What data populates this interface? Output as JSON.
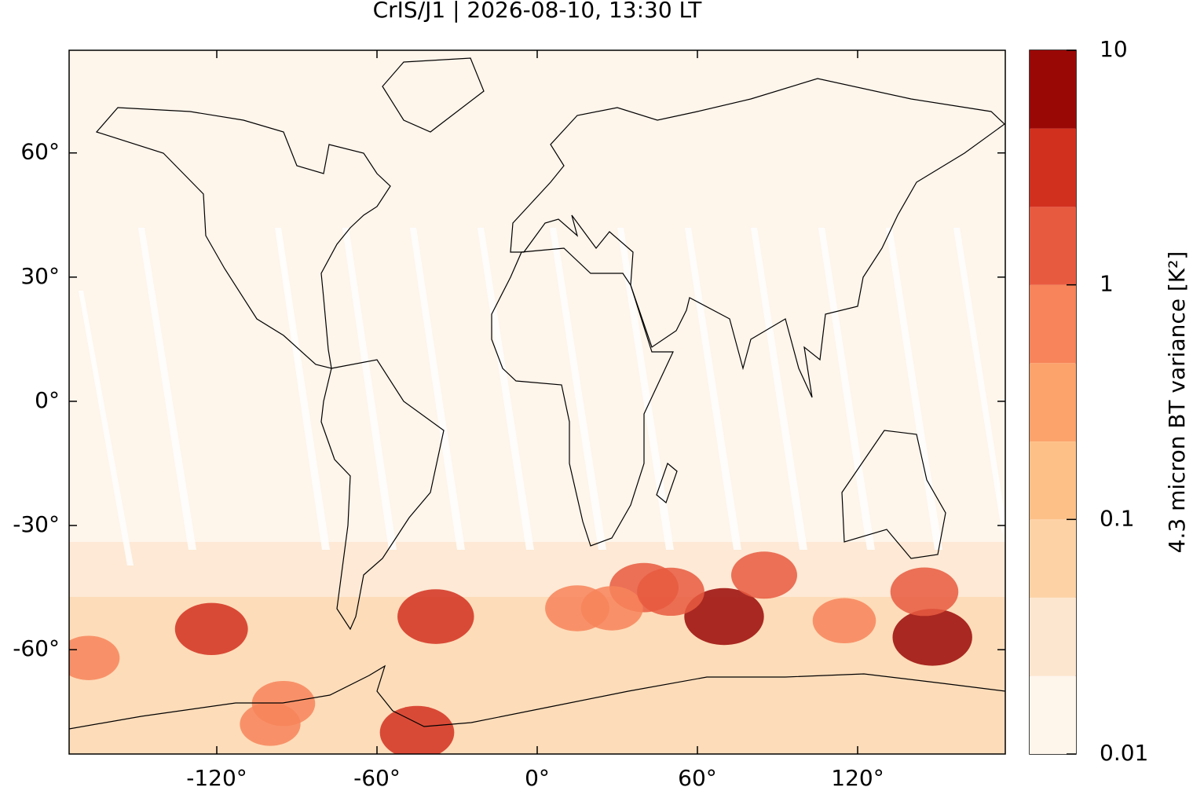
{
  "chart_data": {
    "type": "map",
    "title": "CrIS/J1 | 2026-08-10, 13:30 LT",
    "xlim": [
      -175.3,
      175.3
    ],
    "ylim": [
      -85.2,
      84.8
    ],
    "xticks": [
      {
        "value": -120,
        "label": "-120°"
      },
      {
        "value": -60,
        "label": "-60°"
      },
      {
        "value": 0,
        "label": "0°"
      },
      {
        "value": 60,
        "label": "60°"
      },
      {
        "value": 120,
        "label": "120°"
      }
    ],
    "yticks": [
      {
        "value": 60,
        "label": "60°"
      },
      {
        "value": 30,
        "label": "30°"
      },
      {
        "value": 0,
        "label": "0°"
      },
      {
        "value": -30,
        "label": "-30°"
      },
      {
        "value": -60,
        "label": "-60°"
      }
    ],
    "colorbar": {
      "label": "4.3 micron BT variance [K²]",
      "log": true,
      "lim": [
        0.01,
        10
      ],
      "ticks": [
        0.01,
        0.1,
        1,
        10
      ],
      "levels": [
        0.01,
        0.0215,
        0.0464,
        0.1,
        0.215,
        0.464,
        1,
        2.15,
        4.64,
        10
      ],
      "colors": [
        "#fef5eb",
        "#fde6cf",
        "#fdd3a6",
        "#fdc188",
        "#fca36c",
        "#f7845a",
        "#e85a40",
        "#d2301f",
        "#9a0806"
      ]
    },
    "hotspots": {
      "lon": [
        148,
        -122,
        -45,
        70,
        -38,
        40,
        85,
        145,
        -168,
        15,
        -95,
        115,
        -100,
        28,
        50
      ],
      "lat": [
        -57,
        -55,
        -80,
        -52,
        -52,
        -45,
        -42,
        -46,
        -62,
        -50,
        -73,
        -53,
        -78,
        -50,
        -46
      ],
      "values": [
        6,
        2.5,
        3,
        6,
        4,
        1.5,
        1,
        1.3,
        0.6,
        0.8,
        0.7,
        0.7,
        0.5,
        0.6,
        1.2
      ]
    }
  }
}
